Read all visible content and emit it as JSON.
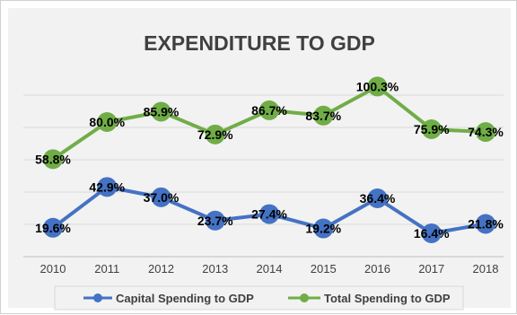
{
  "chart_data": {
    "type": "line",
    "title": "EXPENDITURE TO GDP",
    "categories": [
      "2010",
      "2011",
      "2012",
      "2013",
      "2014",
      "2015",
      "2016",
      "2017",
      "2018"
    ],
    "series": [
      {
        "name": "Capital Spending to GDP",
        "color": "#4472C4",
        "values": [
          19.6,
          42.9,
          37.0,
          23.7,
          27.4,
          19.2,
          36.4,
          16.4,
          21.8
        ],
        "labels": [
          "19.6%",
          "42.9%",
          "37.0%",
          "23.7%",
          "27.4%",
          "19.2%",
          "36.4%",
          "16.4%",
          "21.8%"
        ]
      },
      {
        "name": "Total Spending to GDP",
        "color": "#70AD47",
        "values": [
          58.8,
          80.0,
          85.9,
          72.9,
          86.7,
          83.7,
          100.3,
          75.9,
          74.3
        ],
        "labels": [
          "58.8%",
          "80.0%",
          "85.9%",
          "72.9%",
          "86.7%",
          "83.7%",
          "100.3%",
          "75.9%",
          "74.3%"
        ]
      }
    ],
    "gridlines": true,
    "legend_position": "bottom",
    "plot_background": "#F2F2F2"
  }
}
